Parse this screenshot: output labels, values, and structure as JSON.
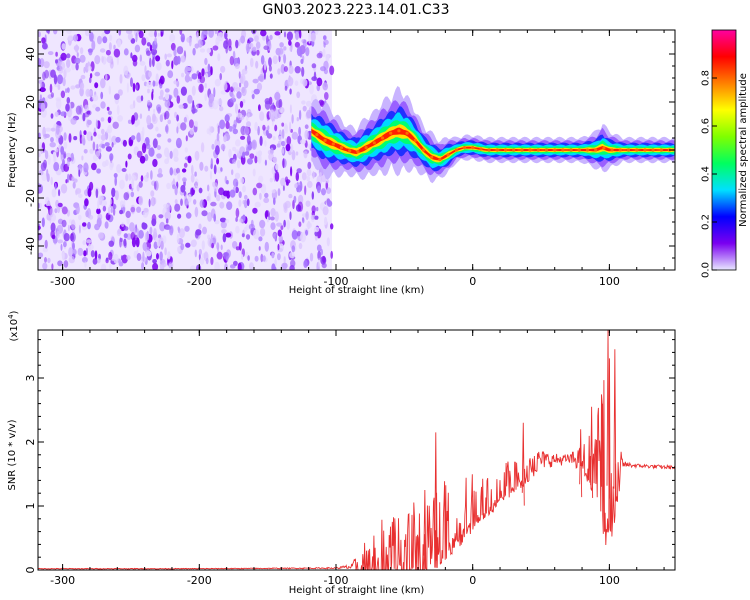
{
  "title": "GN03.2023.223.14.01.C33",
  "chart_data": [
    {
      "type": "heatmap",
      "name": "spectrogram",
      "xlabel": "Height of straight line (km)",
      "ylabel": "Frequency (Hz)",
      "xlim": [
        -318,
        148
      ],
      "ylim": [
        -50,
        50
      ],
      "xticks": [
        -300,
        -200,
        -100,
        0,
        100
      ],
      "yticks": [
        -40,
        -20,
        0,
        20,
        40
      ],
      "noise_region": {
        "x_start": -318,
        "x_end": -103,
        "color": "#7a00f0"
      },
      "ridge": {
        "x": [
          -118,
          -108,
          -100,
          -92,
          -85,
          -78,
          -72,
          -66,
          -60,
          -54,
          -48,
          -42,
          -36,
          -30,
          -24,
          -18,
          -12,
          -6,
          0,
          10,
          20,
          40,
          60,
          80,
          90,
          95,
          100,
          110,
          148
        ],
        "freq": [
          8,
          4,
          2,
          0,
          -1,
          1,
          3,
          5,
          7,
          8,
          7,
          4,
          0,
          -3,
          -4,
          -2,
          0,
          1,
          1,
          0,
          0,
          0,
          0,
          0,
          0,
          1,
          0,
          0,
          0
        ],
        "width": [
          5,
          6,
          5,
          4,
          4,
          5,
          5,
          6,
          6,
          7,
          6,
          5,
          4,
          4,
          3,
          3,
          2,
          2,
          2,
          2,
          2,
          2,
          2,
          2,
          3,
          4,
          3,
          2,
          2
        ]
      },
      "colorbar": {
        "label": "Normalized spectral amplitude",
        "ticks": [
          "0.0",
          "0.2",
          "0.4",
          "0.6",
          "0.8"
        ],
        "range": [
          0,
          1
        ],
        "colors": [
          "#e8e8ff",
          "#7a00f0",
          "#0000ff",
          "#00e0ff",
          "#00ff60",
          "#80ff00",
          "#ffff00",
          "#ff8000",
          "#ff0000",
          "#ff00a0"
        ]
      }
    },
    {
      "type": "line",
      "name": "snr",
      "xlabel": "Height of straight line (km)",
      "ylabel": "SNR (10 * v/v)",
      "yscale_label": "(x10",
      "yscale_exp": "4",
      "yscale_close": ")",
      "xlim": [
        -318,
        148
      ],
      "ylim": [
        0,
        3.75
      ],
      "xticks": [
        -300,
        -200,
        -100,
        0,
        100
      ],
      "yticks": [
        0,
        1,
        2,
        3
      ],
      "color": "#e83030",
      "envelope": {
        "x": [
          -318,
          -200,
          -100,
          -88,
          -80,
          -70,
          -60,
          -50,
          -40,
          -30,
          -20,
          -10,
          0,
          10,
          20,
          30,
          40,
          50,
          60,
          70,
          80,
          90,
          95,
          100,
          105,
          110,
          120,
          130,
          148
        ],
        "base": [
          0.02,
          0.02,
          0.03,
          0.05,
          0.15,
          0.3,
          0.4,
          0.5,
          0.55,
          0.7,
          0.85,
          0.95,
          1.05,
          1.15,
          1.3,
          1.5,
          1.65,
          1.72,
          1.72,
          1.73,
          1.74,
          1.72,
          1.7,
          1.72,
          1.66,
          1.65,
          1.63,
          1.62,
          1.6
        ],
        "amp": [
          0.005,
          0.005,
          0.01,
          0.05,
          0.35,
          0.5,
          0.6,
          0.7,
          0.8,
          0.75,
          0.7,
          0.6,
          0.45,
          0.35,
          0.3,
          0.3,
          0.3,
          0.15,
          0.1,
          0.08,
          0.2,
          0.6,
          1.2,
          1.6,
          0.8,
          0.05,
          0.03,
          0.03,
          0.03
        ]
      },
      "spikes": [
        {
          "x": -27,
          "y": 2.15
        },
        {
          "x": 99,
          "y": 3.75
        },
        {
          "x": 104,
          "y": 3.45
        },
        {
          "x": 95,
          "y": 2.6
        },
        {
          "x": 37,
          "y": 2.3
        },
        {
          "x": 87,
          "y": 2.55
        },
        {
          "x": 79,
          "y": 2.2
        },
        {
          "x": -35,
          "y": 1.25
        }
      ]
    }
  ]
}
